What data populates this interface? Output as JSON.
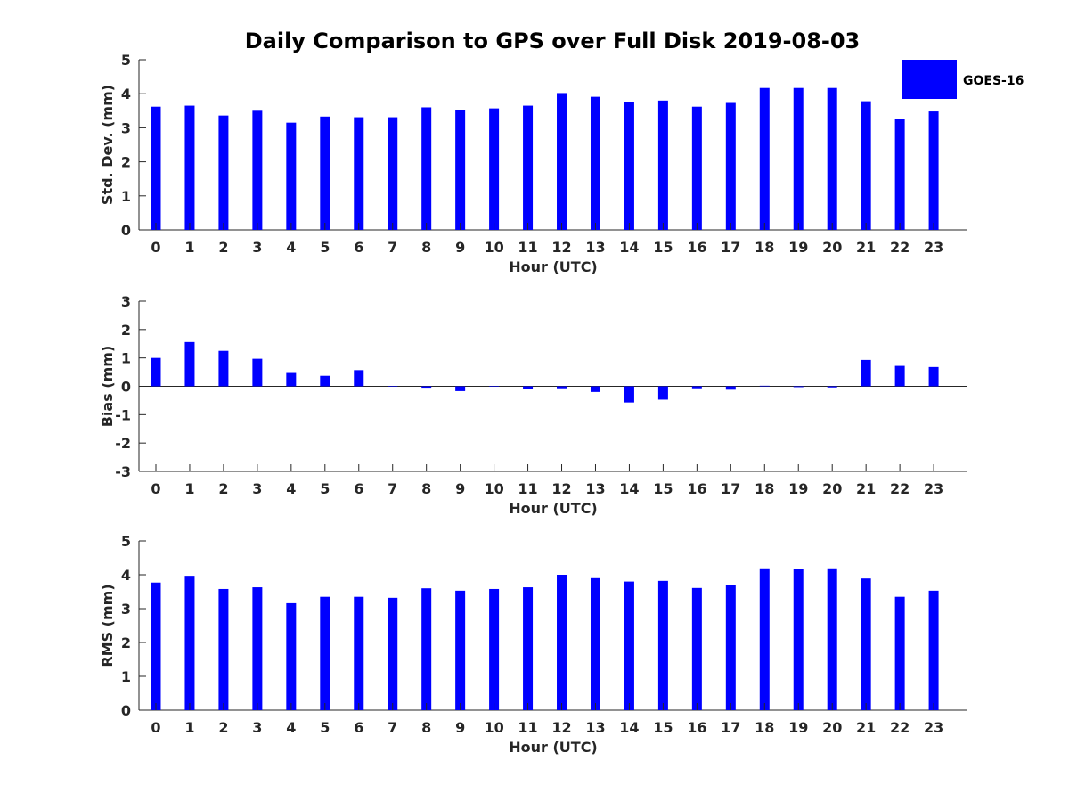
{
  "chart_data": {
    "type": "bar",
    "title": "Daily Comparison to GPS over Full Disk 2019-08-03",
    "legend": {
      "entries": [
        "GOES-16"
      ],
      "placement": "top-right",
      "color": "#0000ff"
    },
    "categories": [
      "0",
      "1",
      "2",
      "3",
      "4",
      "5",
      "6",
      "7",
      "8",
      "9",
      "10",
      "11",
      "12",
      "13",
      "14",
      "15",
      "16",
      "17",
      "18",
      "19",
      "20",
      "21",
      "22",
      "23"
    ],
    "xlabel": "Hour (UTC)",
    "panels": [
      {
        "name": "std-dev",
        "ylabel": "Std. Dev. (mm)",
        "ylim": [
          0,
          5
        ],
        "yticks": [
          "0",
          "1",
          "2",
          "3",
          "4",
          "5"
        ],
        "series": [
          {
            "name": "GOES-16",
            "values": [
              3.62,
              3.65,
              3.36,
              3.5,
              3.15,
              3.33,
              3.31,
              3.31,
              3.6,
              3.52,
              3.57,
              3.65,
              4.02,
              3.91,
              3.75,
              3.8,
              3.62,
              3.73,
              4.17,
              4.17,
              4.17,
              3.78,
              3.26,
              3.48
            ]
          }
        ]
      },
      {
        "name": "bias",
        "ylabel": "Bias (mm)",
        "ylim": [
          -3,
          3
        ],
        "yticks": [
          "-3",
          "-2",
          "-1",
          "0",
          "1",
          "2",
          "3"
        ],
        "series": [
          {
            "name": "GOES-16",
            "values": [
              1.0,
              1.56,
              1.25,
              0.97,
              0.47,
              0.37,
              0.57,
              0.01,
              -0.05,
              -0.17,
              0.01,
              -0.1,
              -0.07,
              -0.2,
              -0.57,
              -0.47,
              -0.07,
              -0.12,
              0.02,
              -0.03,
              -0.04,
              0.93,
              0.72,
              0.68
            ]
          }
        ]
      },
      {
        "name": "rms",
        "ylabel": "RMS (mm)",
        "ylim": [
          0,
          5
        ],
        "yticks": [
          "0",
          "1",
          "2",
          "3",
          "4",
          "5"
        ],
        "series": [
          {
            "name": "GOES-16",
            "values": [
              3.77,
              3.97,
              3.58,
              3.63,
              3.16,
              3.35,
              3.35,
              3.32,
              3.6,
              3.53,
              3.58,
              3.63,
              4.0,
              3.9,
              3.8,
              3.82,
              3.61,
              3.71,
              4.19,
              4.16,
              4.19,
              3.89,
              3.35,
              3.53
            ]
          }
        ]
      }
    ]
  }
}
